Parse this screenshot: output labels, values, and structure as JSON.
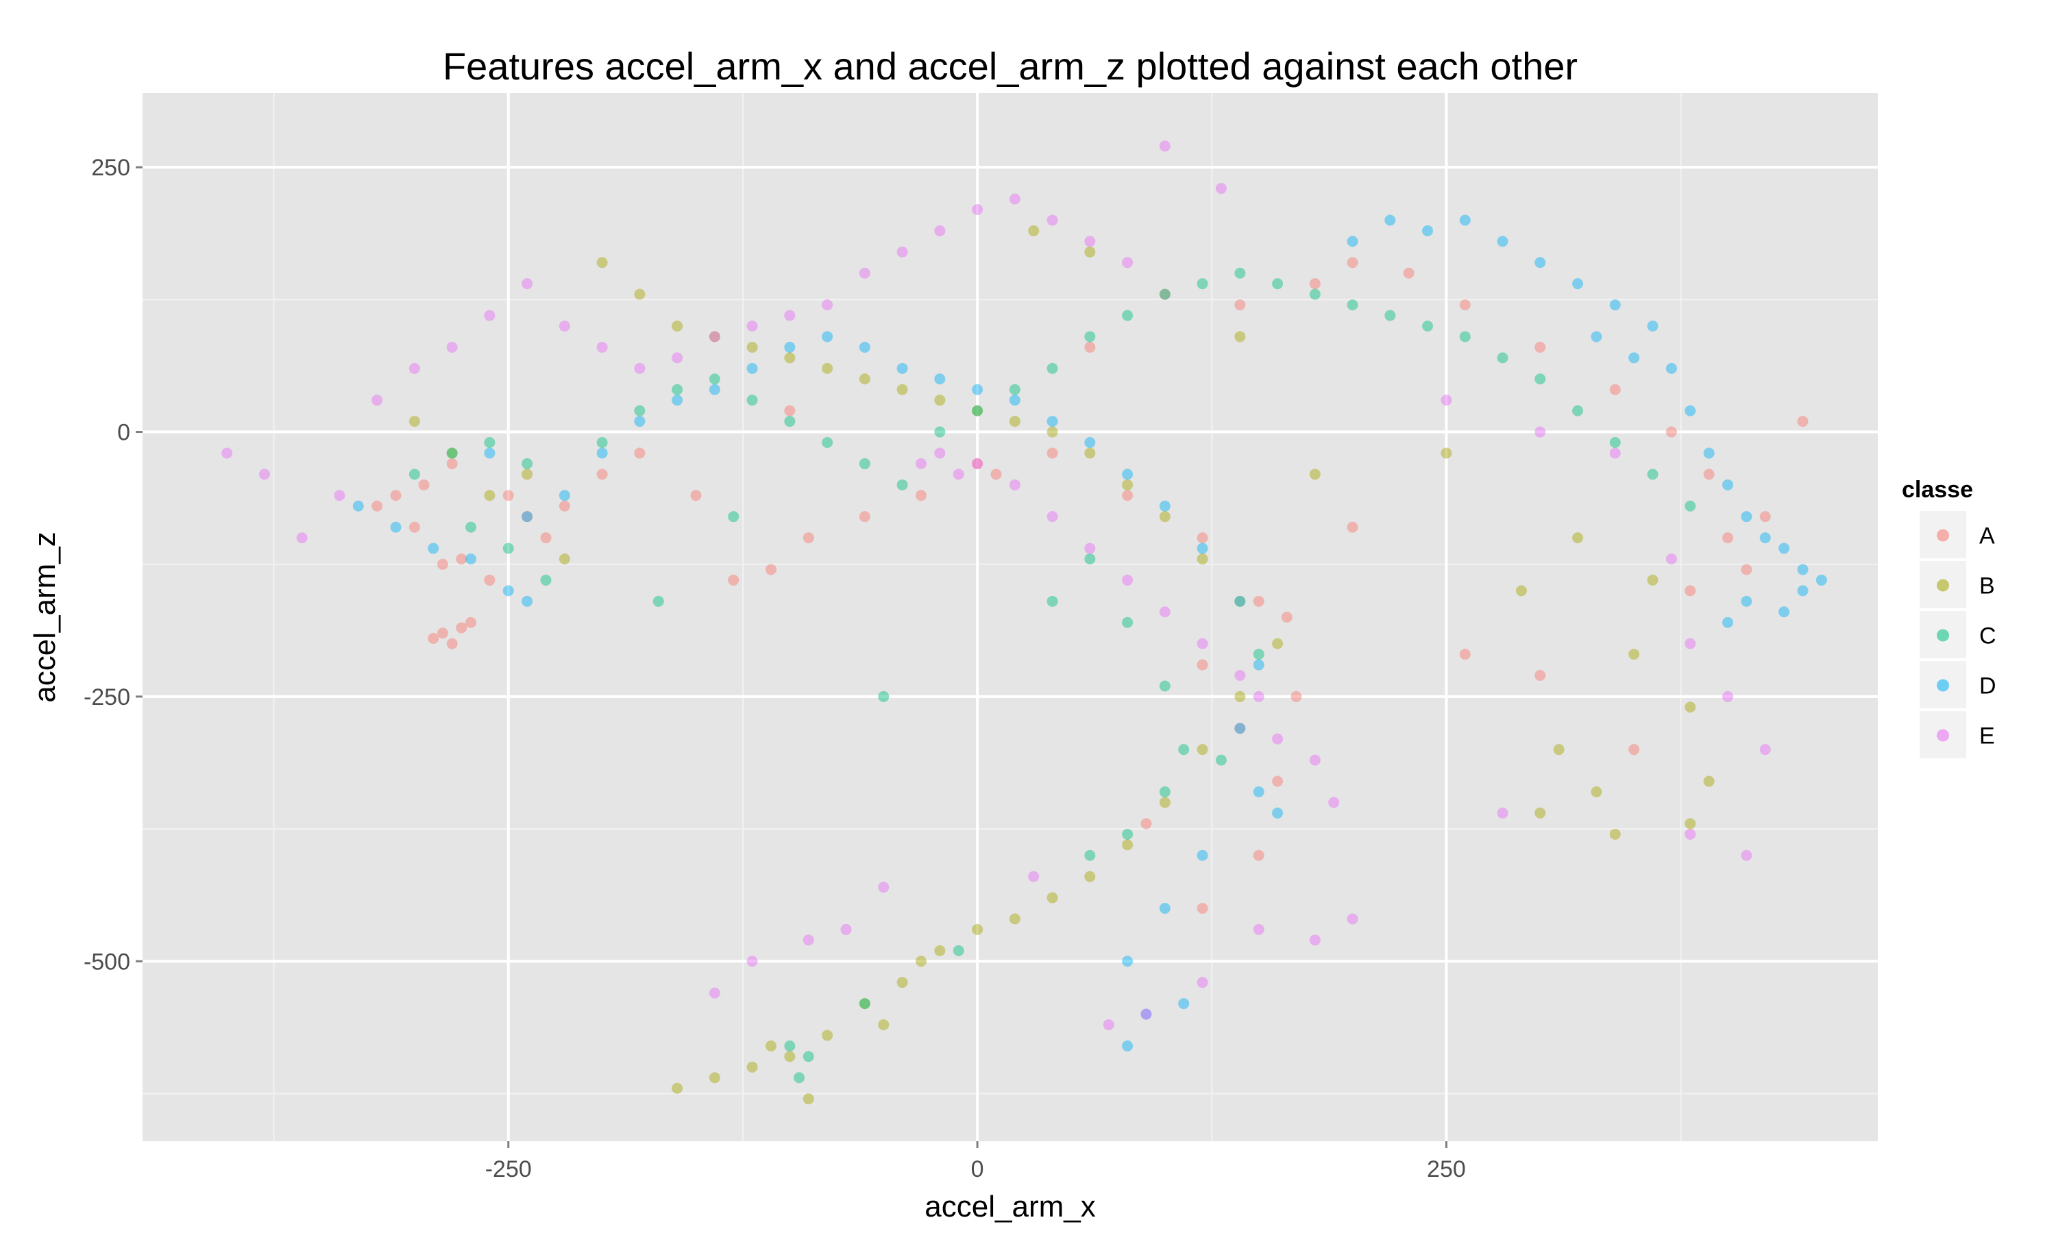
{
  "chart_data": {
    "type": "scatter",
    "title": "Features  accel_arm_x  and  accel_arm_z  plotted against each other",
    "xlabel": "accel_arm_x",
    "ylabel": "accel_arm_z",
    "xlim": [
      -445,
      480
    ],
    "ylim": [
      -670,
      320
    ],
    "x_ticks": [
      -250,
      0,
      250
    ],
    "x_tick_labels": [
      "-250",
      "0",
      "250"
    ],
    "y_ticks": [
      250,
      0,
      -250,
      -500
    ],
    "y_tick_labels": [
      "250",
      "0",
      "-250",
      "-500"
    ],
    "grid": true,
    "legend": {
      "title": "classe",
      "position": "right"
    },
    "series": [
      {
        "name": "A",
        "color": "#F8766D",
        "points": [
          [
            -285,
            -190
          ],
          [
            -275,
            -185
          ],
          [
            -290,
            -195
          ],
          [
            -280,
            -200
          ],
          [
            -270,
            -180
          ],
          [
            -285,
            -125
          ],
          [
            -275,
            -120
          ],
          [
            -300,
            -90
          ],
          [
            -310,
            -60
          ],
          [
            -295,
            -50
          ],
          [
            -280,
            -30
          ],
          [
            -250,
            -60
          ],
          [
            -240,
            -80
          ],
          [
            -230,
            -100
          ],
          [
            -220,
            -70
          ],
          [
            -200,
            -40
          ],
          [
            -180,
            -20
          ],
          [
            -150,
            -60
          ],
          [
            -130,
            -140
          ],
          [
            -110,
            -130
          ],
          [
            -90,
            -100
          ],
          [
            -60,
            -80
          ],
          [
            -30,
            -60
          ],
          [
            10,
            -40
          ],
          [
            40,
            -20
          ],
          [
            80,
            -60
          ],
          [
            120,
            -100
          ],
          [
            150,
            -160
          ],
          [
            165,
            -175
          ],
          [
            170,
            -250
          ],
          [
            160,
            -330
          ],
          [
            150,
            -400
          ],
          [
            120,
            -450
          ],
          [
            140,
            120
          ],
          [
            180,
            140
          ],
          [
            200,
            160
          ],
          [
            230,
            150
          ],
          [
            260,
            120
          ],
          [
            300,
            80
          ],
          [
            340,
            40
          ],
          [
            370,
            0
          ],
          [
            390,
            -40
          ],
          [
            400,
            -100
          ],
          [
            410,
            -130
          ],
          [
            380,
            -150
          ],
          [
            420,
            -80
          ],
          [
            440,
            10
          ],
          [
            260,
            -210
          ],
          [
            300,
            -230
          ],
          [
            350,
            -300
          ],
          [
            -260,
            -140
          ],
          [
            -320,
            -70
          ],
          [
            -100,
            20
          ],
          [
            0,
            -30
          ],
          [
            60,
            80
          ],
          [
            100,
            130
          ],
          [
            120,
            -220
          ],
          [
            140,
            -280
          ],
          [
            90,
            -370
          ],
          [
            200,
            -90
          ]
        ]
      },
      {
        "name": "B",
        "color": "#A3A500",
        "points": [
          [
            -200,
            160
          ],
          [
            -180,
            130
          ],
          [
            -160,
            100
          ],
          [
            -140,
            90
          ],
          [
            -120,
            80
          ],
          [
            -100,
            70
          ],
          [
            -80,
            60
          ],
          [
            -60,
            50
          ],
          [
            -40,
            40
          ],
          [
            -20,
            30
          ],
          [
            0,
            20
          ],
          [
            20,
            10
          ],
          [
            40,
            0
          ],
          [
            60,
            -20
          ],
          [
            80,
            -50
          ],
          [
            100,
            -80
          ],
          [
            120,
            -120
          ],
          [
            140,
            -160
          ],
          [
            160,
            -200
          ],
          [
            140,
            -250
          ],
          [
            120,
            -300
          ],
          [
            100,
            -350
          ],
          [
            80,
            -390
          ],
          [
            60,
            -420
          ],
          [
            40,
            -440
          ],
          [
            20,
            -460
          ],
          [
            0,
            -470
          ],
          [
            -20,
            -490
          ],
          [
            -40,
            -520
          ],
          [
            -60,
            -540
          ],
          [
            -80,
            -570
          ],
          [
            -100,
            -590
          ],
          [
            -120,
            -600
          ],
          [
            -140,
            -610
          ],
          [
            -160,
            -620
          ],
          [
            -90,
            -630
          ],
          [
            -110,
            -580
          ],
          [
            -50,
            -560
          ],
          [
            -30,
            -500
          ],
          [
            -260,
            -60
          ],
          [
            -240,
            -40
          ],
          [
            -280,
            -20
          ],
          [
            -300,
            10
          ],
          [
            -220,
            -120
          ],
          [
            30,
            190
          ],
          [
            60,
            170
          ],
          [
            300,
            -360
          ],
          [
            310,
            -300
          ],
          [
            330,
            -340
          ],
          [
            350,
            -210
          ],
          [
            360,
            -140
          ],
          [
            380,
            -260
          ],
          [
            390,
            -330
          ],
          [
            340,
            -380
          ],
          [
            380,
            -370
          ],
          [
            290,
            -150
          ],
          [
            320,
            -100
          ],
          [
            250,
            -20
          ],
          [
            180,
            -40
          ],
          [
            140,
            90
          ]
        ]
      },
      {
        "name": "C",
        "color": "#00BF7D",
        "points": [
          [
            -300,
            -40
          ],
          [
            -280,
            -20
          ],
          [
            -260,
            -10
          ],
          [
            -240,
            -30
          ],
          [
            -270,
            -90
          ],
          [
            -250,
            -110
          ],
          [
            -230,
            -140
          ],
          [
            -200,
            -10
          ],
          [
            -180,
            20
          ],
          [
            -160,
            40
          ],
          [
            -140,
            50
          ],
          [
            -120,
            30
          ],
          [
            -100,
            10
          ],
          [
            -80,
            -10
          ],
          [
            -60,
            -30
          ],
          [
            -40,
            -50
          ],
          [
            -20,
            0
          ],
          [
            0,
            20
          ],
          [
            20,
            40
          ],
          [
            40,
            60
          ],
          [
            60,
            90
          ],
          [
            80,
            110
          ],
          [
            100,
            130
          ],
          [
            120,
            140
          ],
          [
            140,
            150
          ],
          [
            160,
            140
          ],
          [
            180,
            130
          ],
          [
            200,
            120
          ],
          [
            220,
            110
          ],
          [
            240,
            100
          ],
          [
            260,
            90
          ],
          [
            280,
            70
          ],
          [
            300,
            50
          ],
          [
            320,
            20
          ],
          [
            340,
            -10
          ],
          [
            360,
            -40
          ],
          [
            380,
            -70
          ],
          [
            60,
            -120
          ],
          [
            80,
            -180
          ],
          [
            100,
            -240
          ],
          [
            110,
            -300
          ],
          [
            100,
            -340
          ],
          [
            80,
            -380
          ],
          [
            60,
            -400
          ],
          [
            -90,
            -590
          ],
          [
            -95,
            -610
          ],
          [
            -60,
            -540
          ],
          [
            -10,
            -490
          ],
          [
            -100,
            -580
          ],
          [
            -50,
            -250
          ],
          [
            -170,
            -160
          ],
          [
            -130,
            -80
          ],
          [
            40,
            -160
          ],
          [
            130,
            -310
          ],
          [
            150,
            -210
          ]
        ]
      },
      {
        "name": "D",
        "color": "#00B0F6",
        "points": [
          [
            -330,
            -70
          ],
          [
            -310,
            -90
          ],
          [
            -290,
            -110
          ],
          [
            -270,
            -120
          ],
          [
            -250,
            -150
          ],
          [
            -240,
            -160
          ],
          [
            -220,
            -60
          ],
          [
            -200,
            -20
          ],
          [
            -180,
            10
          ],
          [
            -160,
            30
          ],
          [
            -140,
            40
          ],
          [
            -120,
            60
          ],
          [
            -100,
            80
          ],
          [
            -80,
            90
          ],
          [
            -60,
            80
          ],
          [
            -40,
            60
          ],
          [
            -20,
            50
          ],
          [
            0,
            40
          ],
          [
            20,
            30
          ],
          [
            40,
            10
          ],
          [
            60,
            -10
          ],
          [
            80,
            -40
          ],
          [
            100,
            -70
          ],
          [
            120,
            -110
          ],
          [
            140,
            -160
          ],
          [
            150,
            -220
          ],
          [
            140,
            -280
          ],
          [
            150,
            -340
          ],
          [
            160,
            -360
          ],
          [
            120,
            -400
          ],
          [
            100,
            -450
          ],
          [
            80,
            -500
          ],
          [
            90,
            -550
          ],
          [
            110,
            -540
          ],
          [
            200,
            180
          ],
          [
            220,
            200
          ],
          [
            240,
            190
          ],
          [
            260,
            200
          ],
          [
            280,
            180
          ],
          [
            300,
            160
          ],
          [
            320,
            140
          ],
          [
            340,
            120
          ],
          [
            360,
            100
          ],
          [
            370,
            60
          ],
          [
            380,
            20
          ],
          [
            390,
            -20
          ],
          [
            400,
            -50
          ],
          [
            410,
            -80
          ],
          [
            420,
            -100
          ],
          [
            430,
            -110
          ],
          [
            440,
            -130
          ],
          [
            450,
            -140
          ],
          [
            430,
            -170
          ],
          [
            410,
            -160
          ],
          [
            400,
            -180
          ],
          [
            440,
            -150
          ],
          [
            350,
            70
          ],
          [
            330,
            90
          ],
          [
            -260,
            -20
          ],
          [
            -240,
            -80
          ],
          [
            80,
            -580
          ]
        ]
      },
      {
        "name": "E",
        "color": "#E76BF3",
        "points": [
          [
            -400,
            -20
          ],
          [
            -380,
            -40
          ],
          [
            -360,
            -100
          ],
          [
            -340,
            -60
          ],
          [
            -320,
            30
          ],
          [
            -300,
            60
          ],
          [
            -280,
            80
          ],
          [
            -260,
            110
          ],
          [
            -240,
            140
          ],
          [
            -220,
            100
          ],
          [
            -200,
            80
          ],
          [
            -180,
            60
          ],
          [
            -160,
            70
          ],
          [
            -140,
            90
          ],
          [
            -120,
            100
          ],
          [
            -100,
            110
          ],
          [
            -80,
            120
          ],
          [
            -60,
            150
          ],
          [
            -40,
            170
          ],
          [
            -20,
            190
          ],
          [
            0,
            210
          ],
          [
            20,
            220
          ],
          [
            40,
            200
          ],
          [
            60,
            180
          ],
          [
            80,
            160
          ],
          [
            100,
            270
          ],
          [
            130,
            230
          ],
          [
            -20,
            -20
          ],
          [
            0,
            -30
          ],
          [
            -30,
            -30
          ],
          [
            -10,
            -40
          ],
          [
            20,
            -50
          ],
          [
            40,
            -80
          ],
          [
            60,
            -110
          ],
          [
            80,
            -140
          ],
          [
            100,
            -170
          ],
          [
            120,
            -200
          ],
          [
            140,
            -230
          ],
          [
            150,
            -250
          ],
          [
            160,
            -290
          ],
          [
            180,
            -310
          ],
          [
            190,
            -350
          ],
          [
            200,
            -460
          ],
          [
            180,
            -480
          ],
          [
            150,
            -470
          ],
          [
            120,
            -520
          ],
          [
            90,
            -550
          ],
          [
            70,
            -560
          ],
          [
            -120,
            -500
          ],
          [
            -140,
            -530
          ],
          [
            -90,
            -480
          ],
          [
            -70,
            -470
          ],
          [
            -50,
            -430
          ],
          [
            30,
            -420
          ],
          [
            250,
            30
          ],
          [
            300,
            0
          ],
          [
            340,
            -20
          ],
          [
            370,
            -120
          ],
          [
            380,
            -200
          ],
          [
            400,
            -250
          ],
          [
            420,
            -300
          ],
          [
            410,
            -400
          ],
          [
            380,
            -380
          ],
          [
            280,
            -360
          ]
        ]
      }
    ]
  }
}
